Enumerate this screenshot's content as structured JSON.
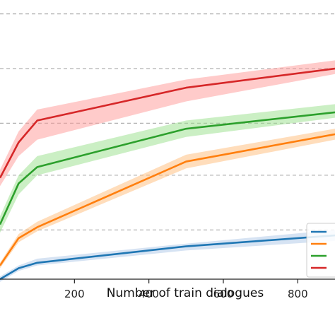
{
  "chart_data": {
    "type": "line",
    "title": "",
    "xlabel": "Number of train dialogues",
    "ylabel": "",
    "xlim": [
      0,
      900
    ],
    "ylim": [
      0,
      100
    ],
    "x_ticks": [
      200,
      400,
      600,
      800
    ],
    "x_tick_labels": [
      "200",
      "400",
      "600",
      "800"
    ],
    "gridlines_y": [
      18,
      38,
      57,
      77,
      97
    ],
    "grid": "horizontal dashed",
    "legend_position": "bottom-right",
    "series": [
      {
        "color": "#1f77b4",
        "band_color": "#aec7e8",
        "x": [
          0,
          50,
          100,
          500,
          900
        ],
        "y": [
          0,
          4,
          6,
          12,
          16
        ],
        "band": [
          [
            -1,
            1
          ],
          [
            3,
            5
          ],
          [
            5,
            7.5
          ],
          [
            10.5,
            13
          ],
          [
            14,
            18
          ]
        ]
      },
      {
        "color": "#ff7f0e",
        "band_color": "#ffbb78",
        "x": [
          0,
          50,
          100,
          500,
          900
        ],
        "y": [
          5,
          15,
          19,
          43,
          53
        ],
        "band": [
          [
            4,
            6
          ],
          [
            13.5,
            16.5
          ],
          [
            17.5,
            21
          ],
          [
            40.5,
            45.5
          ],
          [
            51,
            55
          ]
        ]
      },
      {
        "color": "#2ca02c",
        "band_color": "#98df8a",
        "x": [
          0,
          50,
          100,
          500,
          900
        ],
        "y": [
          20,
          35,
          41,
          55,
          61
        ],
        "band": [
          [
            17,
            23
          ],
          [
            31,
            38
          ],
          [
            38,
            45
          ],
          [
            52,
            58
          ],
          [
            59,
            64
          ]
        ]
      },
      {
        "color": "#d62728",
        "band_color": "#ff9896",
        "x": [
          0,
          50,
          100,
          500,
          900
        ],
        "y": [
          37,
          50,
          58,
          70,
          77
        ],
        "band": [
          [
            34,
            40
          ],
          [
            45,
            54
          ],
          [
            51,
            62
          ],
          [
            65,
            73
          ],
          [
            75,
            80
          ]
        ]
      }
    ]
  }
}
